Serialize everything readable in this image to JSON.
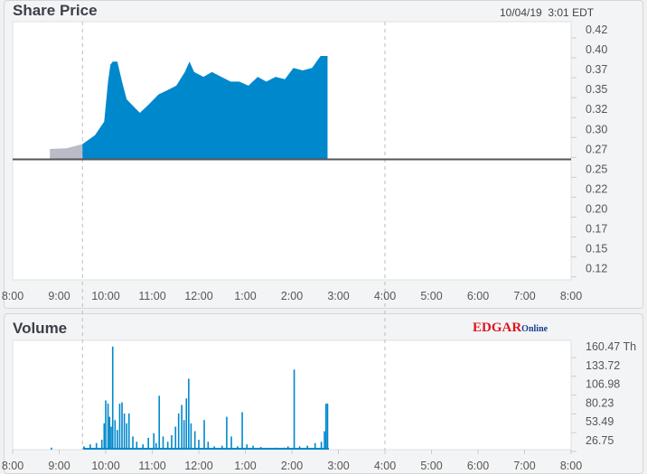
{
  "price_panel": {
    "title": "Share Price",
    "timestamp": "10/04/19  3:01 EDT"
  },
  "volume_panel": {
    "title": "Volume",
    "logo_text": "EDGAR Online"
  },
  "colors": {
    "main_fill": "#0088cc",
    "premarket_fill": "#b9bcc8",
    "baseline": "#555555"
  },
  "chart_data": [
    {
      "type": "area",
      "title": "Share Price",
      "x_ticks": [
        "8:00",
        "9:00",
        "10:00",
        "11:00",
        "12:00",
        "1:00",
        "2:00",
        "3:00",
        "4:00",
        "5:00",
        "6:00",
        "7:00",
        "8:00"
      ],
      "y_ticks": [
        "0.42",
        "0.40",
        "0.37",
        "0.35",
        "0.32",
        "0.30",
        "0.27",
        "0.25",
        "0.22",
        "0.20",
        "0.17",
        "0.15",
        "0.12"
      ],
      "ylim": [
        0.1,
        0.43
      ],
      "previous_close": 0.262,
      "session_markers": [
        "9:30",
        "4:00"
      ],
      "premarket": [
        [
          "8:48",
          0.275
        ],
        [
          "9:10",
          0.276
        ],
        [
          "9:30",
          0.281
        ]
      ],
      "series": [
        [
          "9:30",
          0.281
        ],
        [
          "9:46",
          0.292
        ],
        [
          "9:58",
          0.309
        ],
        [
          "10:03",
          0.359
        ],
        [
          "10:06",
          0.38
        ],
        [
          "10:09",
          0.384
        ],
        [
          "10:15",
          0.384
        ],
        [
          "10:21",
          0.359
        ],
        [
          "10:27",
          0.337
        ],
        [
          "10:38",
          0.326
        ],
        [
          "10:44",
          0.32
        ],
        [
          "10:56",
          0.331
        ],
        [
          "11:08",
          0.343
        ],
        [
          "11:19",
          0.348
        ],
        [
          "11:31",
          0.354
        ],
        [
          "11:42",
          0.371
        ],
        [
          "11:48",
          0.384
        ],
        [
          "11:54",
          0.371
        ],
        [
          "12:06",
          0.365
        ],
        [
          "12:17",
          0.371
        ],
        [
          "12:29",
          0.365
        ],
        [
          "12:41",
          0.359
        ],
        [
          "12:52",
          0.359
        ],
        [
          "13:04",
          0.354
        ],
        [
          "13:16",
          0.365
        ],
        [
          "13:27",
          0.359
        ],
        [
          "13:39",
          0.365
        ],
        [
          "13:51",
          0.362
        ],
        [
          "14:02",
          0.376
        ],
        [
          "14:14",
          0.373
        ],
        [
          "14:26",
          0.376
        ],
        [
          "14:37",
          0.391
        ],
        [
          "14:46",
          0.391
        ]
      ]
    },
    {
      "type": "bar",
      "title": "Volume",
      "y_unit": "Th",
      "x_ticks": [
        "8:00",
        "9:00",
        "10:00",
        "11:00",
        "12:00",
        "1:00",
        "2:00",
        "3:00",
        "4:00",
        "5:00",
        "6:00",
        "7:00",
        "8:00"
      ],
      "y_ticks": [
        "160.47 Th",
        "133.72",
        "106.98",
        "80.23",
        "53.49",
        "26.75"
      ],
      "ylim": [
        0,
        165
      ],
      "bars": [
        [
          "8:50",
          3
        ],
        [
          "9:32",
          5
        ],
        [
          "9:40",
          8
        ],
        [
          "9:48",
          10
        ],
        [
          "9:55",
          15
        ],
        [
          "9:58",
          40
        ],
        [
          "10:00",
          75
        ],
        [
          "10:03",
          70
        ],
        [
          "10:05",
          50
        ],
        [
          "10:07",
          35
        ],
        [
          "10:09",
          157
        ],
        [
          "10:12",
          45
        ],
        [
          "10:15",
          30
        ],
        [
          "10:18",
          70
        ],
        [
          "10:21",
          72
        ],
        [
          "10:24",
          55
        ],
        [
          "10:27",
          40
        ],
        [
          "10:30",
          55
        ],
        [
          "10:35",
          20
        ],
        [
          "10:40",
          12
        ],
        [
          "10:48",
          8
        ],
        [
          "10:55",
          18
        ],
        [
          "11:02",
          25
        ],
        [
          "11:05",
          10
        ],
        [
          "11:09",
          82
        ],
        [
          "11:14",
          20
        ],
        [
          "11:20",
          12
        ],
        [
          "11:25",
          22
        ],
        [
          "11:30",
          35
        ],
        [
          "11:34",
          55
        ],
        [
          "11:38",
          68
        ],
        [
          "11:41",
          45
        ],
        [
          "11:44",
          78
        ],
        [
          "11:47",
          108
        ],
        [
          "11:50",
          40
        ],
        [
          "11:55",
          28
        ],
        [
          "12:00",
          15
        ],
        [
          "12:07",
          45
        ],
        [
          "12:12",
          12
        ],
        [
          "12:20",
          5
        ],
        [
          "12:30",
          6
        ],
        [
          "12:36",
          50
        ],
        [
          "12:42",
          20
        ],
        [
          "12:50",
          5
        ],
        [
          "12:56",
          57
        ],
        [
          "13:02",
          8
        ],
        [
          "13:10",
          6
        ],
        [
          "13:20",
          4
        ],
        [
          "13:40",
          3
        ],
        [
          "13:50",
          3
        ],
        [
          "13:55",
          5
        ],
        [
          "14:03",
          122
        ],
        [
          "14:10",
          5
        ],
        [
          "14:20",
          6
        ],
        [
          "14:30",
          10
        ],
        [
          "14:38",
          12
        ],
        [
          "14:42",
          28
        ],
        [
          "14:44",
          70
        ],
        [
          "14:46",
          70
        ]
      ]
    }
  ]
}
